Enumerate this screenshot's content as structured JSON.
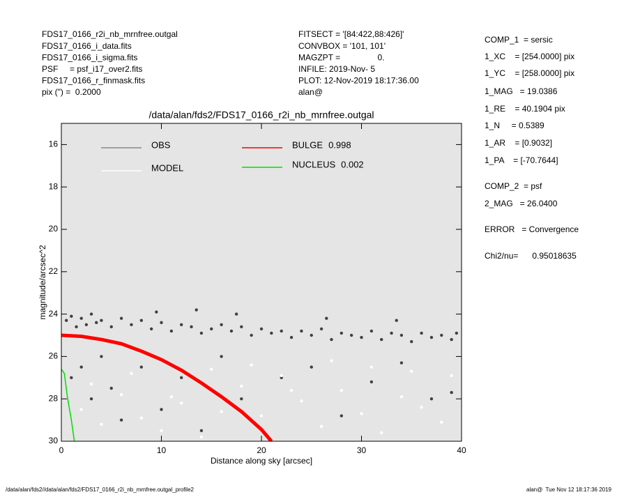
{
  "header": {
    "left": [
      "FDS17_0166_r2i_nb_mrnfree.outgal",
      "FDS17_0166_i_data.fits",
      "FDS17_0166_i_sigma.fits",
      "PSF     = psf_i17_over2.fits",
      "FDS17_0166_r_finmask.fits",
      "pix (\") =  0.2000"
    ],
    "middle": [
      "FITSECT = '[84:422,88:426]'",
      "CONVBOX = '101, 101'",
      "MAGZPT =                0.",
      "INFILE: 2019-Nov- 5",
      "PLOT: 12-Nov-2019 18:17:36.00",
      "alan@"
    ],
    "right": [
      "COMP_1  = sersic",
      "1_XC    = [254.0000] pix",
      "1_YC    = [258.0000] pix",
      "1_MAG   = 19.0386",
      "1_RE    = 40.1904 pix",
      "1_N     = 0.5389",
      "1_AR    = [0.9032]",
      "1_PA    = [-70.7644]",
      "COMP_2  = psf",
      "2_MAG   = 26.0400",
      "ERROR   = Convergence",
      "Chi2/nu=      0.95018635"
    ]
  },
  "footer": {
    "left": "/data/alan/fds2//data/alan/fds2/FDS17_0166_r2i_nb_mrnfree.outgal_profile2",
    "right": "alan@  Tue Nov 12 18:17:36 2019"
  },
  "chart_data": {
    "type": "scatter",
    "title": "/data/alan/fds2/FDS17_0166_r2i_nb_mrnfree.outgal",
    "x_label": "Distance along sky [arcsec]",
    "y_label": "magnitude/arcsec^2",
    "xlim": [
      0,
      40
    ],
    "xticks": [
      0,
      10,
      20,
      30,
      40
    ],
    "ylim": [
      15,
      30
    ],
    "yticks": [
      16,
      18,
      20,
      22,
      24,
      26,
      28,
      30
    ],
    "y_inverted": true,
    "background": "#e5e5e5",
    "series": [
      {
        "name": "OBS",
        "kind": "points",
        "color": "#404040",
        "x": [
          0.5,
          1,
          1.5,
          2,
          2.5,
          3,
          3.5,
          4,
          5,
          6,
          7,
          8,
          9,
          10,
          11,
          12,
          13,
          14,
          15,
          16,
          17,
          18,
          19,
          20,
          21,
          22,
          23,
          24,
          25,
          26,
          27,
          28,
          29,
          30,
          31,
          32,
          33,
          34,
          35,
          36,
          37,
          38,
          39,
          39.5,
          1,
          2,
          3,
          4,
          5,
          6,
          8,
          10,
          12,
          14,
          16,
          18,
          22,
          25,
          28,
          31,
          34,
          37,
          39,
          9.5,
          13.5,
          17.5,
          26.5,
          33.5
        ],
        "values": [
          24.3,
          24.1,
          24.6,
          24.2,
          24.5,
          24.0,
          24.4,
          24.3,
          24.6,
          24.2,
          24.5,
          24.3,
          24.7,
          24.4,
          24.8,
          24.5,
          24.6,
          24.9,
          24.7,
          24.5,
          24.8,
          24.6,
          25.0,
          24.7,
          24.9,
          24.8,
          25.1,
          24.8,
          25.0,
          24.7,
          25.2,
          24.9,
          25.0,
          25.1,
          24.8,
          25.2,
          24.9,
          25.0,
          25.3,
          24.9,
          25.1,
          25.0,
          25.2,
          24.9,
          27.0,
          26.5,
          28.0,
          26.0,
          27.5,
          29.0,
          26.5,
          28.5,
          27.0,
          29.5,
          26.0,
          28.0,
          27.0,
          26.5,
          28.8,
          27.2,
          26.3,
          28.0,
          27.7,
          23.9,
          23.8,
          24.0,
          24.2,
          24.3
        ]
      },
      {
        "name": "MODEL",
        "kind": "points",
        "color": "#ffffff",
        "x": [
          2,
          4,
          6,
          8,
          10,
          12,
          14,
          16,
          18,
          20,
          22,
          24,
          26,
          28,
          30,
          32,
          34,
          36,
          38,
          3,
          7,
          11,
          15,
          19,
          23,
          27,
          31,
          35,
          39
        ],
        "values": [
          28.5,
          29.2,
          27.8,
          28.9,
          29.5,
          28.2,
          29.8,
          28.6,
          27.4,
          28.8,
          26.9,
          28.1,
          29.3,
          27.6,
          28.7,
          29.6,
          27.9,
          28.4,
          29.1,
          27.3,
          26.8,
          27.9,
          26.6,
          26.4,
          27.6,
          26.2,
          26.5,
          26.7,
          26.9
        ]
      },
      {
        "name": "BULGE",
        "kind": "line",
        "fraction": 0.998,
        "color": "#ff0000",
        "x": [
          0,
          2,
          4,
          6,
          8,
          10,
          12,
          14,
          16,
          18,
          20,
          21
        ],
        "values": [
          25.0,
          25.05,
          25.2,
          25.4,
          25.75,
          26.15,
          26.65,
          27.25,
          27.9,
          28.6,
          29.45,
          30.0
        ]
      },
      {
        "name": "NUCLEUS",
        "kind": "line",
        "fraction": 0.002,
        "color": "#00dd00",
        "x": [
          0,
          0.3,
          0.6,
          1.0,
          1.3
        ],
        "values": [
          26.6,
          26.8,
          27.9,
          29.0,
          30.0
        ]
      }
    ]
  }
}
